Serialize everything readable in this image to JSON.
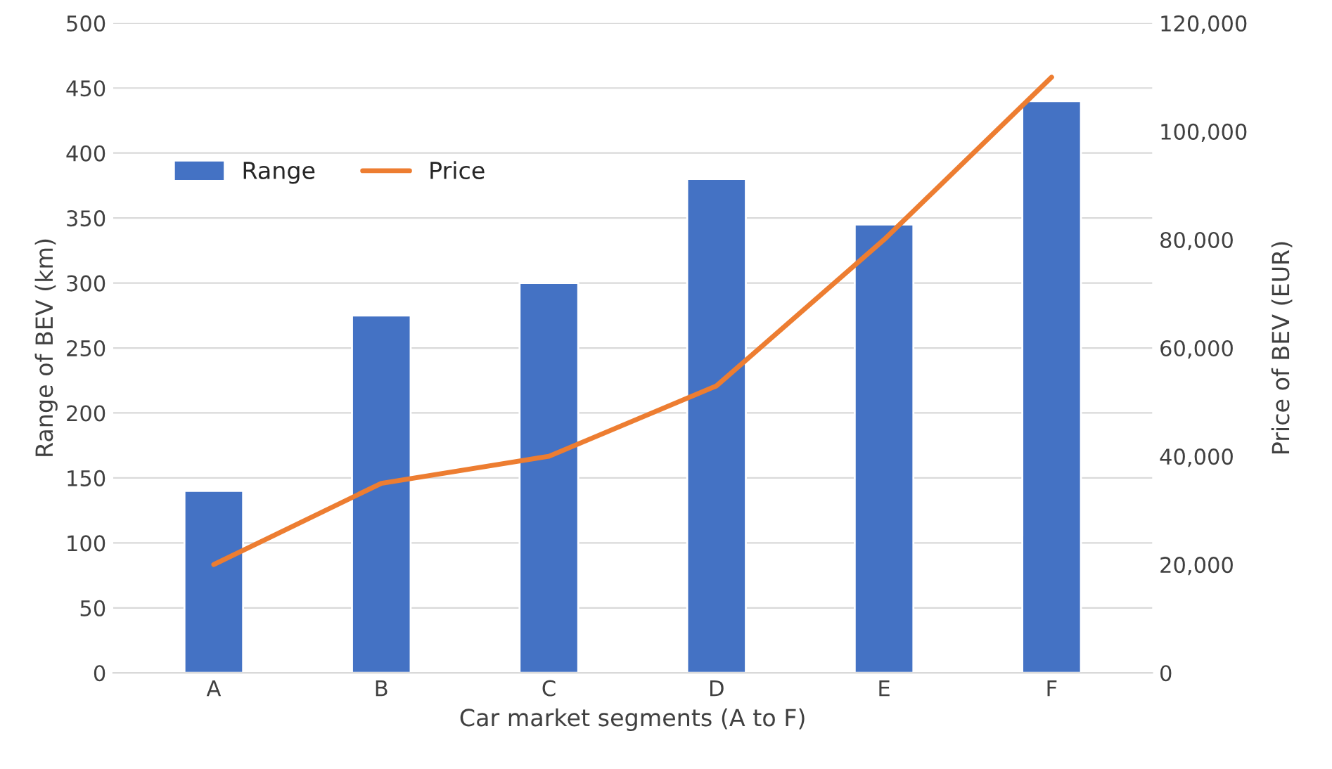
{
  "chart_data": {
    "type": "bar",
    "xlabel": "Car market segments (A to F)",
    "ylabel": "Range of BEV (km)",
    "y2label": "Price of BEV (EUR)",
    "categories": [
      "A",
      "B",
      "C",
      "D",
      "E",
      "F"
    ],
    "series": [
      {
        "name": "Range",
        "color": "#4472c4",
        "values": [
          140,
          275,
          300,
          380,
          345,
          440
        ]
      },
      {
        "name": "Price",
        "type": "line",
        "axis": "y2",
        "color": "#ed7d31",
        "values": [
          20000,
          35000,
          40000,
          53000,
          80000,
          110000
        ]
      }
    ],
    "ylim": [
      0,
      500
    ],
    "yticks": [
      0,
      50,
      100,
      150,
      200,
      250,
      300,
      350,
      400,
      450,
      500
    ],
    "y2lim": [
      0,
      120000
    ],
    "y2ticks": [
      0,
      {
        "value": 20000,
        "label": "20,000"
      },
      {
        "value": 40000,
        "label": "40,000"
      },
      {
        "value": 60000,
        "label": "60,000"
      },
      {
        "value": 80000,
        "label": "80,000"
      },
      {
        "value": 100000,
        "label": "100,000"
      },
      {
        "value": 120000,
        "label": "120,000"
      }
    ],
    "grid": "y",
    "legend": "top left"
  }
}
